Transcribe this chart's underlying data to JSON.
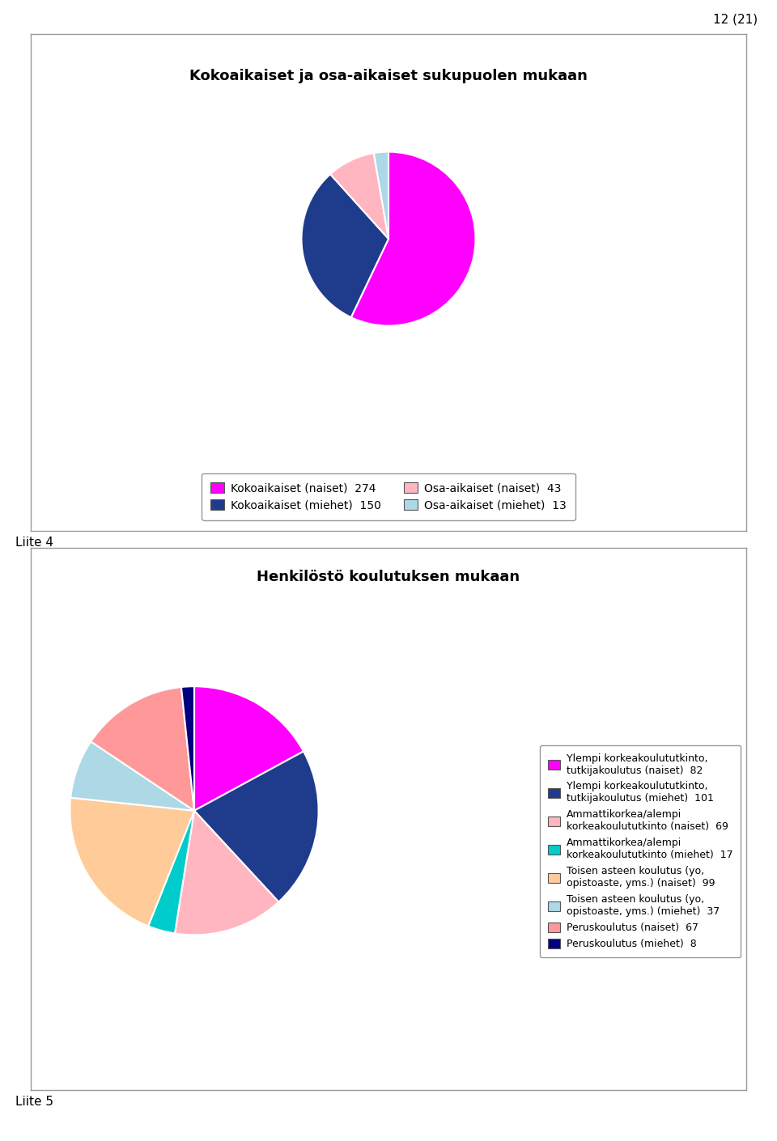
{
  "page_number": "12 (21)",
  "chart1": {
    "title": "Kokoaikaiset ja osa-aikaiset sukupuolen mukaan",
    "values": [
      274,
      150,
      43,
      13
    ],
    "colors": [
      "#FF00FF",
      "#1F3B8C",
      "#FFB6C1",
      "#ADD8E6"
    ],
    "legend_labels": [
      "Kokoaikaiset (naiset)  274",
      "Kokoaikaiset (miehet)  150",
      "Osa-aikaiset (naiset)  43",
      "Osa-aikaiset (miehet)  13"
    ],
    "startangle": 90,
    "label": "Liite 4"
  },
  "chart2": {
    "title": "Henkilöstö koulutuksen mukaan",
    "values": [
      82,
      101,
      69,
      17,
      99,
      37,
      67,
      8
    ],
    "colors": [
      "#FF00FF",
      "#1F3B8C",
      "#FFB6C1",
      "#00CCCC",
      "#FFCC99",
      "#ADD8E6",
      "#FF9999",
      "#000080"
    ],
    "legend_labels": [
      "Ylempi korkeakoulututkinto,\ntutkijakoulutus (naiset)  82",
      "Ylempi korkeakoulututkinto,\ntutkijakoulutus (miehet)  101",
      "Ammattikorkea/alempi\nkorkeakoulututkinto (naiset)  69",
      "Ammattikorkea/alempi\nkorkeakoulututkinto (miehet)  17",
      "Toisen asteen koulutus (yo,\nopistoaste, yms.) (naiset)  99",
      "Toisen asteen koulutus (yo,\nopistoaste, yms.) (miehet)  37",
      "Peruskoulutus (naiset)  67",
      "Peruskoulutus (miehet)  8"
    ],
    "startangle": 90,
    "label": "Liite 5"
  },
  "bg_color": "#FFFFFF",
  "border_color": "#888888"
}
